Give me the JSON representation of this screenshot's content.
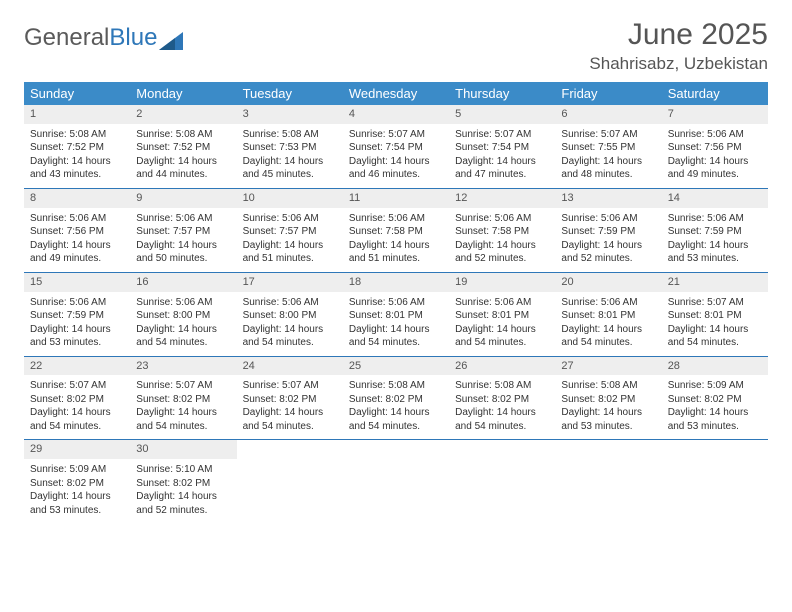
{
  "logo": {
    "part1": "General",
    "part2": "Blue"
  },
  "title": "June 2025",
  "location": "Shahrisabz, Uzbekistan",
  "colors": {
    "header_bg": "#3b8bc8",
    "header_border": "#2e77b8",
    "daynum_bg": "#eeeeee",
    "text": "#333333",
    "title_text": "#555555"
  },
  "weekdays": [
    "Sunday",
    "Monday",
    "Tuesday",
    "Wednesday",
    "Thursday",
    "Friday",
    "Saturday"
  ],
  "weeks": [
    [
      {
        "n": "1",
        "sunrise": "Sunrise: 5:08 AM",
        "sunset": "Sunset: 7:52 PM",
        "day1": "Daylight: 14 hours",
        "day2": "and 43 minutes."
      },
      {
        "n": "2",
        "sunrise": "Sunrise: 5:08 AM",
        "sunset": "Sunset: 7:52 PM",
        "day1": "Daylight: 14 hours",
        "day2": "and 44 minutes."
      },
      {
        "n": "3",
        "sunrise": "Sunrise: 5:08 AM",
        "sunset": "Sunset: 7:53 PM",
        "day1": "Daylight: 14 hours",
        "day2": "and 45 minutes."
      },
      {
        "n": "4",
        "sunrise": "Sunrise: 5:07 AM",
        "sunset": "Sunset: 7:54 PM",
        "day1": "Daylight: 14 hours",
        "day2": "and 46 minutes."
      },
      {
        "n": "5",
        "sunrise": "Sunrise: 5:07 AM",
        "sunset": "Sunset: 7:54 PM",
        "day1": "Daylight: 14 hours",
        "day2": "and 47 minutes."
      },
      {
        "n": "6",
        "sunrise": "Sunrise: 5:07 AM",
        "sunset": "Sunset: 7:55 PM",
        "day1": "Daylight: 14 hours",
        "day2": "and 48 minutes."
      },
      {
        "n": "7",
        "sunrise": "Sunrise: 5:06 AM",
        "sunset": "Sunset: 7:56 PM",
        "day1": "Daylight: 14 hours",
        "day2": "and 49 minutes."
      }
    ],
    [
      {
        "n": "8",
        "sunrise": "Sunrise: 5:06 AM",
        "sunset": "Sunset: 7:56 PM",
        "day1": "Daylight: 14 hours",
        "day2": "and 49 minutes."
      },
      {
        "n": "9",
        "sunrise": "Sunrise: 5:06 AM",
        "sunset": "Sunset: 7:57 PM",
        "day1": "Daylight: 14 hours",
        "day2": "and 50 minutes."
      },
      {
        "n": "10",
        "sunrise": "Sunrise: 5:06 AM",
        "sunset": "Sunset: 7:57 PM",
        "day1": "Daylight: 14 hours",
        "day2": "and 51 minutes."
      },
      {
        "n": "11",
        "sunrise": "Sunrise: 5:06 AM",
        "sunset": "Sunset: 7:58 PM",
        "day1": "Daylight: 14 hours",
        "day2": "and 51 minutes."
      },
      {
        "n": "12",
        "sunrise": "Sunrise: 5:06 AM",
        "sunset": "Sunset: 7:58 PM",
        "day1": "Daylight: 14 hours",
        "day2": "and 52 minutes."
      },
      {
        "n": "13",
        "sunrise": "Sunrise: 5:06 AM",
        "sunset": "Sunset: 7:59 PM",
        "day1": "Daylight: 14 hours",
        "day2": "and 52 minutes."
      },
      {
        "n": "14",
        "sunrise": "Sunrise: 5:06 AM",
        "sunset": "Sunset: 7:59 PM",
        "day1": "Daylight: 14 hours",
        "day2": "and 53 minutes."
      }
    ],
    [
      {
        "n": "15",
        "sunrise": "Sunrise: 5:06 AM",
        "sunset": "Sunset: 7:59 PM",
        "day1": "Daylight: 14 hours",
        "day2": "and 53 minutes."
      },
      {
        "n": "16",
        "sunrise": "Sunrise: 5:06 AM",
        "sunset": "Sunset: 8:00 PM",
        "day1": "Daylight: 14 hours",
        "day2": "and 54 minutes."
      },
      {
        "n": "17",
        "sunrise": "Sunrise: 5:06 AM",
        "sunset": "Sunset: 8:00 PM",
        "day1": "Daylight: 14 hours",
        "day2": "and 54 minutes."
      },
      {
        "n": "18",
        "sunrise": "Sunrise: 5:06 AM",
        "sunset": "Sunset: 8:01 PM",
        "day1": "Daylight: 14 hours",
        "day2": "and 54 minutes."
      },
      {
        "n": "19",
        "sunrise": "Sunrise: 5:06 AM",
        "sunset": "Sunset: 8:01 PM",
        "day1": "Daylight: 14 hours",
        "day2": "and 54 minutes."
      },
      {
        "n": "20",
        "sunrise": "Sunrise: 5:06 AM",
        "sunset": "Sunset: 8:01 PM",
        "day1": "Daylight: 14 hours",
        "day2": "and 54 minutes."
      },
      {
        "n": "21",
        "sunrise": "Sunrise: 5:07 AM",
        "sunset": "Sunset: 8:01 PM",
        "day1": "Daylight: 14 hours",
        "day2": "and 54 minutes."
      }
    ],
    [
      {
        "n": "22",
        "sunrise": "Sunrise: 5:07 AM",
        "sunset": "Sunset: 8:02 PM",
        "day1": "Daylight: 14 hours",
        "day2": "and 54 minutes."
      },
      {
        "n": "23",
        "sunrise": "Sunrise: 5:07 AM",
        "sunset": "Sunset: 8:02 PM",
        "day1": "Daylight: 14 hours",
        "day2": "and 54 minutes."
      },
      {
        "n": "24",
        "sunrise": "Sunrise: 5:07 AM",
        "sunset": "Sunset: 8:02 PM",
        "day1": "Daylight: 14 hours",
        "day2": "and 54 minutes."
      },
      {
        "n": "25",
        "sunrise": "Sunrise: 5:08 AM",
        "sunset": "Sunset: 8:02 PM",
        "day1": "Daylight: 14 hours",
        "day2": "and 54 minutes."
      },
      {
        "n": "26",
        "sunrise": "Sunrise: 5:08 AM",
        "sunset": "Sunset: 8:02 PM",
        "day1": "Daylight: 14 hours",
        "day2": "and 54 minutes."
      },
      {
        "n": "27",
        "sunrise": "Sunrise: 5:08 AM",
        "sunset": "Sunset: 8:02 PM",
        "day1": "Daylight: 14 hours",
        "day2": "and 53 minutes."
      },
      {
        "n": "28",
        "sunrise": "Sunrise: 5:09 AM",
        "sunset": "Sunset: 8:02 PM",
        "day1": "Daylight: 14 hours",
        "day2": "and 53 minutes."
      }
    ],
    [
      {
        "n": "29",
        "sunrise": "Sunrise: 5:09 AM",
        "sunset": "Sunset: 8:02 PM",
        "day1": "Daylight: 14 hours",
        "day2": "and 53 minutes."
      },
      {
        "n": "30",
        "sunrise": "Sunrise: 5:10 AM",
        "sunset": "Sunset: 8:02 PM",
        "day1": "Daylight: 14 hours",
        "day2": "and 52 minutes."
      },
      null,
      null,
      null,
      null,
      null
    ]
  ]
}
